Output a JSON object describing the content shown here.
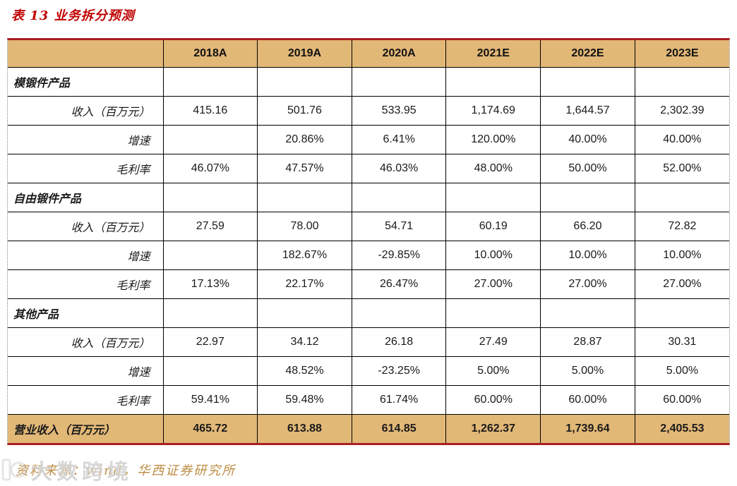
{
  "title": "表 13 业务拆分预测",
  "table": {
    "columns": [
      "",
      "2018A",
      "2019A",
      "2020A",
      "2021E",
      "2022E",
      "2023E"
    ],
    "rows": [
      {
        "type": "section",
        "label": "模锻件产品",
        "values": [
          "",
          "",
          "",
          "",
          "",
          ""
        ]
      },
      {
        "type": "data",
        "label": "收入（百万元）",
        "values": [
          "415.16",
          "501.76",
          "533.95",
          "1,174.69",
          "1,644.57",
          "2,302.39"
        ]
      },
      {
        "type": "data",
        "label": "增速",
        "values": [
          "",
          "20.86%",
          "6.41%",
          "120.00%",
          "40.00%",
          "40.00%"
        ]
      },
      {
        "type": "data",
        "label": "毛利率",
        "values": [
          "46.07%",
          "47.57%",
          "46.03%",
          "48.00%",
          "50.00%",
          "52.00%"
        ]
      },
      {
        "type": "section",
        "label": "自由锻件产品",
        "values": [
          "",
          "",
          "",
          "",
          "",
          ""
        ]
      },
      {
        "type": "data",
        "label": "收入（百万元）",
        "values": [
          "27.59",
          "78.00",
          "54.71",
          "60.19",
          "66.20",
          "72.82"
        ]
      },
      {
        "type": "data",
        "label": "增速",
        "values": [
          "",
          "182.67%",
          "-29.85%",
          "10.00%",
          "10.00%",
          "10.00%"
        ]
      },
      {
        "type": "data",
        "label": "毛利率",
        "values": [
          "17.13%",
          "22.17%",
          "26.47%",
          "27.00%",
          "27.00%",
          "27.00%"
        ]
      },
      {
        "type": "section",
        "label": "其他产品",
        "values": [
          "",
          "",
          "",
          "",
          "",
          ""
        ]
      },
      {
        "type": "data",
        "label": "收入（百万元）",
        "values": [
          "22.97",
          "34.12",
          "26.18",
          "27.49",
          "28.87",
          "30.31"
        ]
      },
      {
        "type": "data",
        "label": "增速",
        "values": [
          "",
          "48.52%",
          "-23.25%",
          "5.00%",
          "5.00%",
          "5.00%"
        ]
      },
      {
        "type": "data",
        "label": "毛利率",
        "values": [
          "59.41%",
          "59.48%",
          "61.74%",
          "60.00%",
          "60.00%",
          "60.00%"
        ]
      },
      {
        "type": "total",
        "label": "营业收入（百万元）",
        "values": [
          "465.72",
          "613.88",
          "614.85",
          "1,262.37",
          "1,739.64",
          "2,405.53"
        ]
      }
    ]
  },
  "footer": {
    "source": "资料来源：wind，华西证券研究所"
  },
  "watermark": {
    "text": "大数跨境"
  },
  "colors": {
    "title_red": "#c00000",
    "rule_red": "#ab1f23",
    "header_tan": "#e2b877",
    "source_gold": "#bd8c44",
    "grid_black": "#000000"
  }
}
